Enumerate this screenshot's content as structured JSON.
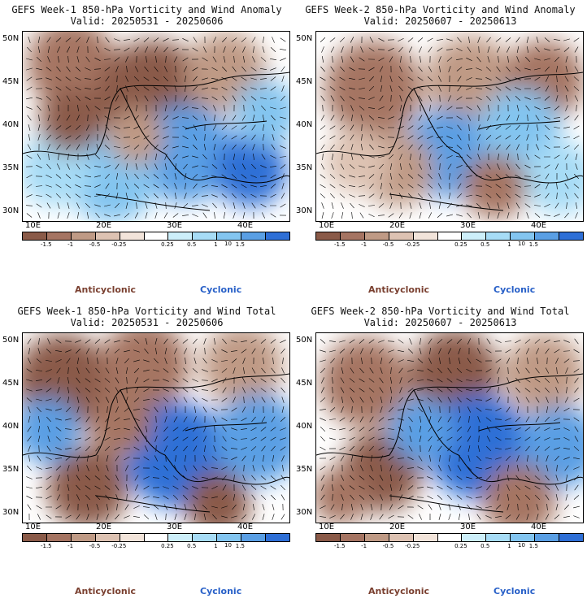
{
  "panels": [
    {
      "title": "GEFS Week-1 850-hPa Vorticity and Wind Anomaly",
      "valid": "Valid: 20250531 - 20250606"
    },
    {
      "title": "GEFS Week-2 850-hPa Vorticity and Wind Anomaly",
      "valid": "Valid: 20250607 - 20250613"
    },
    {
      "title": "GEFS Week-1 850-hPa Vorticity and Wind Total",
      "valid": "Valid: 20250531 - 20250606"
    },
    {
      "title": "GEFS Week-2 850-hPa Vorticity and Wind Total",
      "valid": "Valid: 20250607 - 20250613"
    }
  ],
  "lat_labels": [
    "50N",
    "45N",
    "40N",
    "35N",
    "30N"
  ],
  "lon_labels": [
    "10E",
    "20E",
    "30E",
    "40E"
  ],
  "colorbar": {
    "ticks": [
      "-1.5",
      "-1",
      "-0.5",
      "-0.25",
      "0.25",
      "0.5",
      "1",
      "1.5"
    ],
    "exponent": "10",
    "colors": [
      "#8a5a48",
      "#a57462",
      "#bf9a85",
      "#ddc2b2",
      "#f2e4da",
      "#ffffff",
      "#cdeffa",
      "#a7dcf6",
      "#83c5f0",
      "#5a9fe4",
      "#2e6fd6"
    ]
  },
  "legend": {
    "anticyclonic": "Anticyclonic",
    "cyclonic": "Cyclonic"
  }
}
